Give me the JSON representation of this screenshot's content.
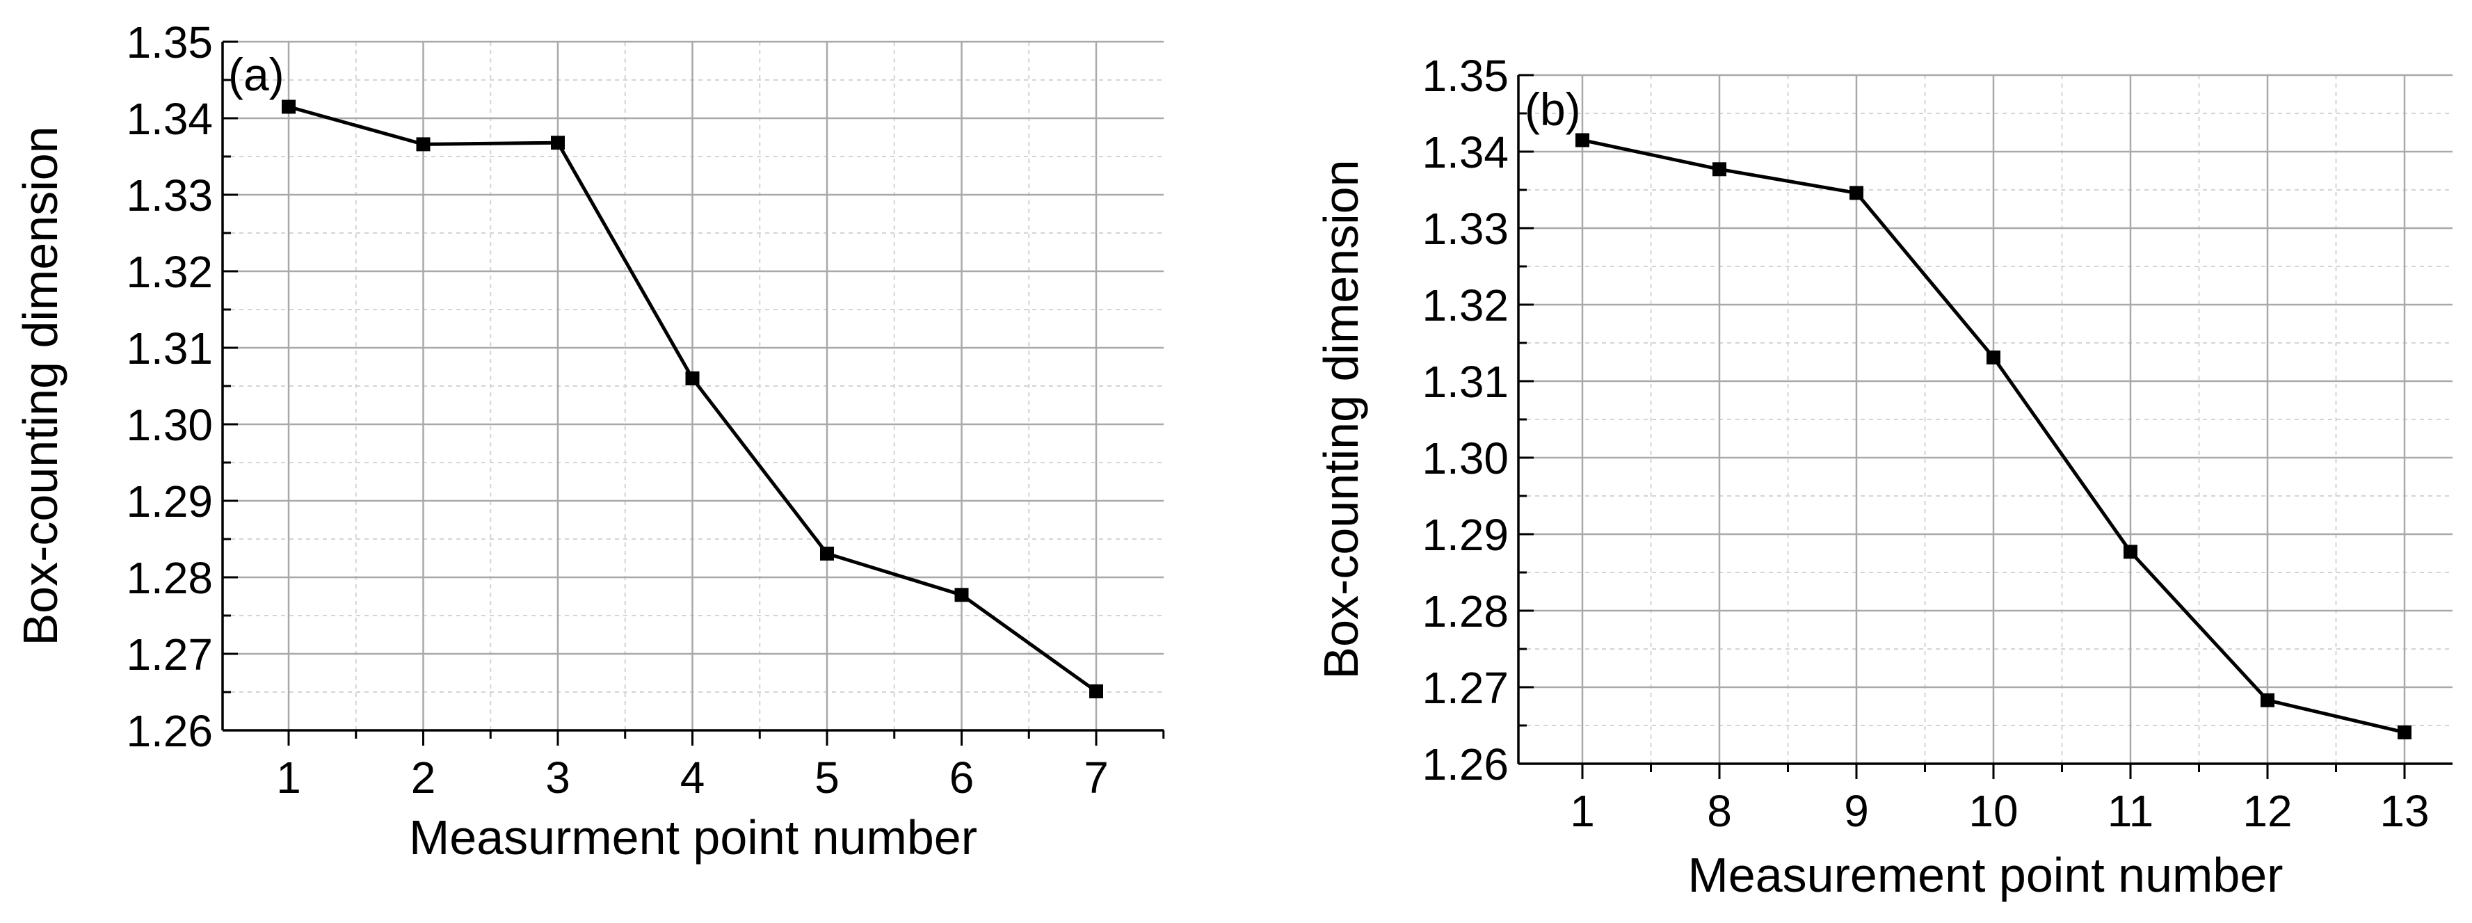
{
  "chart_data": [
    {
      "type": "line",
      "panel_label": "(a)",
      "xlabel": "Measurment point number",
      "ylabel": "Box-counting dimension",
      "categories": [
        "1",
        "2",
        "3",
        "4",
        "5",
        "6",
        "7"
      ],
      "ylim": [
        1.26,
        1.35
      ],
      "yticks": [
        "1.26",
        "1.27",
        "1.28",
        "1.29",
        "1.30",
        "1.31",
        "1.32",
        "1.33",
        "1.34",
        "1.35"
      ],
      "grid": true,
      "marker": "square",
      "series": [
        {
          "values": [
            1.3415,
            1.3366,
            1.3368,
            1.306,
            1.2831,
            1.2777,
            1.2651
          ]
        }
      ]
    },
    {
      "type": "line",
      "panel_label": "(b)",
      "xlabel": "Measurement point number",
      "ylabel": "Box-counting dimension",
      "categories": [
        "1",
        "8",
        "9",
        "10",
        "11",
        "12",
        "13"
      ],
      "ylim": [
        1.26,
        1.35
      ],
      "yticks": [
        "1.26",
        "1.27",
        "1.28",
        "1.29",
        "1.30",
        "1.31",
        "1.32",
        "1.33",
        "1.34",
        "1.35"
      ],
      "grid": true,
      "marker": "square",
      "series": [
        {
          "values": [
            1.3415,
            1.3377,
            1.3346,
            1.3131,
            1.2877,
            1.2683,
            1.2641
          ]
        }
      ]
    }
  ]
}
